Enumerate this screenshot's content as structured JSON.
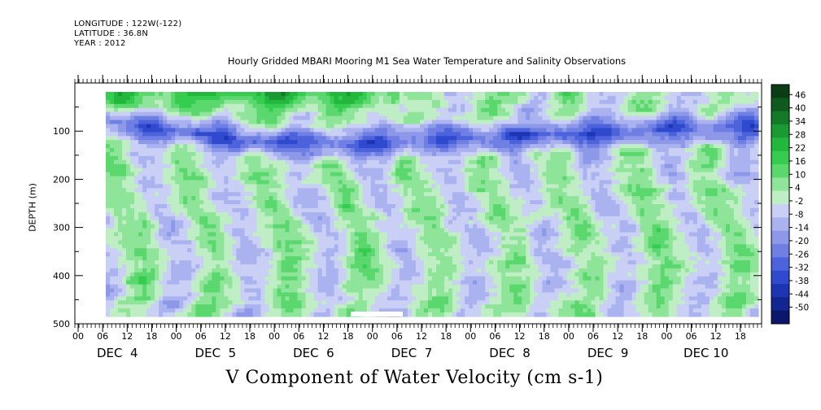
{
  "header": {
    "longitude": "LONGITUDE : 122W(-122)",
    "latitude": "LATITUDE : 36.8N",
    "year": "YEAR : 2012"
  },
  "chart_data": {
    "type": "heatmap",
    "title": "Hourly Gridded MBARI Mooring M1 Sea Water Temperature and Salinity Observations",
    "xlabel": "V Component of Water Velocity (cm s-1)",
    "ylabel": "DEPTH (m)",
    "y_ticks": [
      "100",
      "200",
      "300",
      "400",
      "500"
    ],
    "ylim": [
      500,
      0
    ],
    "x_hour_ticks": [
      "00",
      "06",
      "12",
      "18",
      "00",
      "06",
      "12",
      "18",
      "00",
      "06",
      "12",
      "18",
      "00",
      "06",
      "12",
      "18",
      "00",
      "06",
      "12",
      "18",
      "00",
      "06",
      "12",
      "18",
      "00",
      "06",
      "12",
      "18"
    ],
    "x_day_labels": [
      "DEC  4",
      "DEC  5",
      "DEC  6",
      "DEC  7",
      "DEC  8",
      "DEC  9",
      "DEC 10"
    ],
    "colorbar": {
      "labels": [
        "46",
        "40",
        "34",
        "28",
        "22",
        "16",
        "10",
        "4",
        "-2",
        "-8",
        "-14",
        "-20",
        "-26",
        "-32",
        "-38",
        "-44",
        "-50"
      ],
      "colors": [
        "#0a3d14",
        "#0f5a1f",
        "#137a28",
        "#199a33",
        "#22b83e",
        "#35cc50",
        "#5ad86e",
        "#8ee59a",
        "#bfeec4",
        "#c9cff5",
        "#aab3ef",
        "#8d98e9",
        "#6f7fe3",
        "#4d63dc",
        "#2f49cf",
        "#1e35b3",
        "#132590",
        "#0b176a"
      ]
    },
    "z_range": [
      -50,
      46
    ],
    "colors": {
      "positive": "#22b83e",
      "negative": "#2f49cf",
      "near_zero": "#aab3ef"
    }
  }
}
